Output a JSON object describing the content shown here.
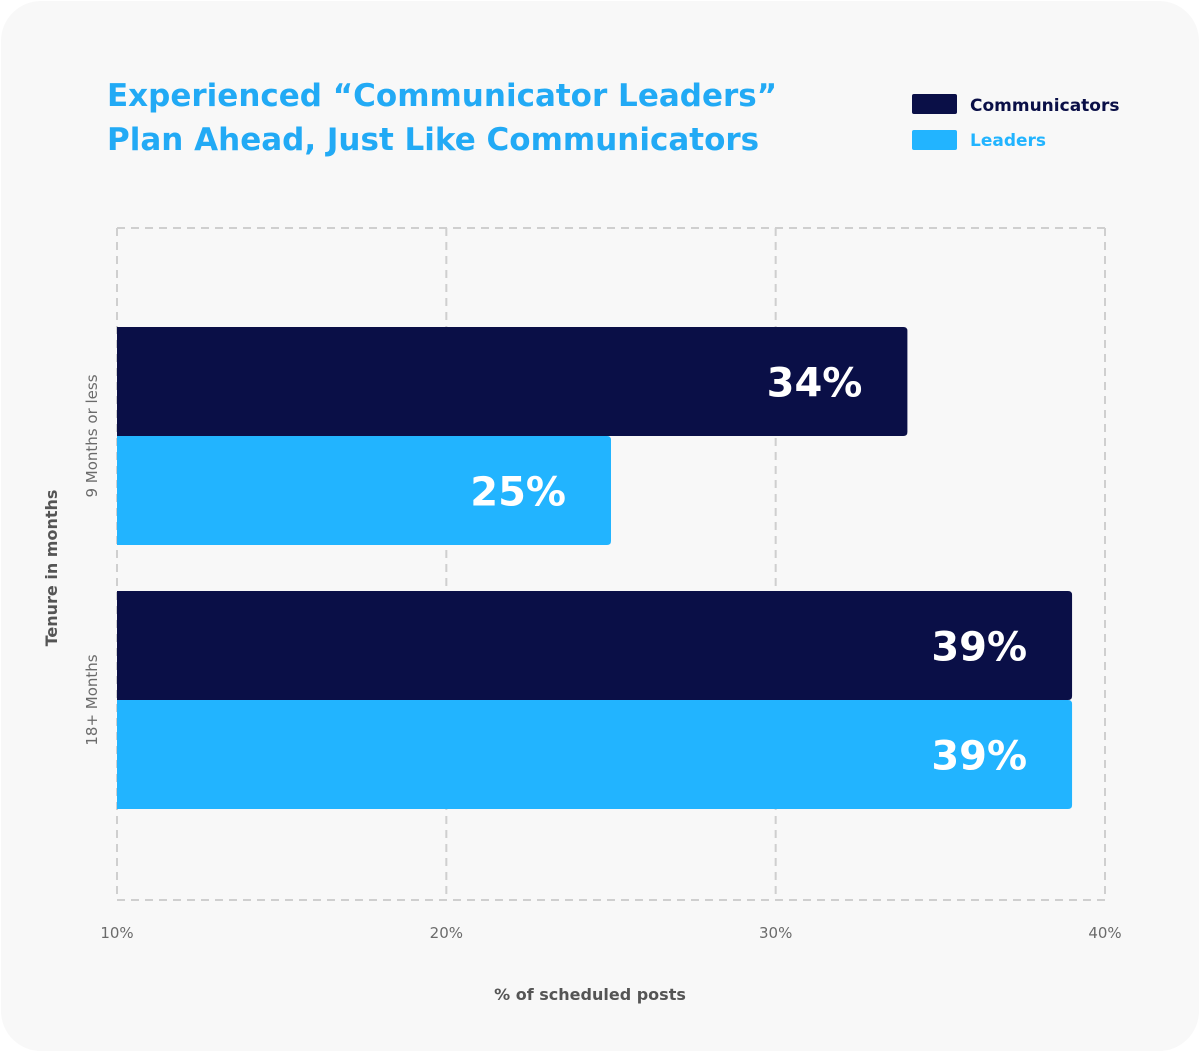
{
  "chart_data": {
    "type": "bar",
    "orientation": "horizontal",
    "title_lines": [
      "Experienced “Communicator Leaders”",
      "Plan Ahead, Just Like Communicators"
    ],
    "xlabel": "% of scheduled posts",
    "ylabel": "Tenure in months",
    "xlim": [
      10,
      40
    ],
    "xticks": [
      "10%",
      "20%",
      "30%",
      "40%"
    ],
    "xtick_values": [
      10,
      20,
      30,
      40
    ],
    "grid": true,
    "legend_position": "top-right",
    "categories": [
      "9 Months or less",
      "18+ Months"
    ],
    "series": [
      {
        "name": "Communicators",
        "color": "#0a0f47",
        "values": [
          34,
          39
        ],
        "labels": [
          "34%",
          "39%"
        ]
      },
      {
        "name": "Leaders",
        "color": "#22b4ff",
        "values": [
          25,
          39
        ],
        "labels": [
          "25%",
          "39%"
        ]
      }
    ]
  }
}
